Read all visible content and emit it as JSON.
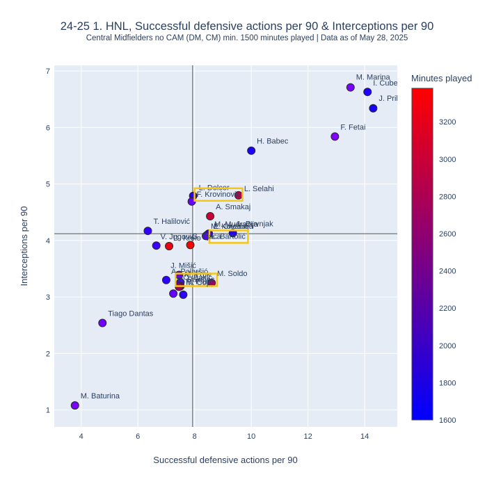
{
  "chart_data": {
    "type": "scatter",
    "title": "24-25 1. HNL, Successful defensive actions per 90 & Interceptions per 90",
    "subtitle": "Central Midfielders no CAM (DM, CM) min. 1500 minutes played | Data as of May 28, 2025",
    "xlabel": "Successful defensive actions per 90",
    "ylabel": "Interceptions per 90",
    "xlim": [
      3.05,
      15.15
    ],
    "ylim": [
      0.7,
      7.1
    ],
    "xticks": [
      4,
      6,
      8,
      10,
      12,
      14
    ],
    "yticks": [
      1,
      2,
      3,
      4,
      5,
      6,
      7
    ],
    "grid": true,
    "reference_lines": {
      "x": 7.93,
      "y": 4.12
    },
    "colorbar": {
      "title": "Minutes played",
      "min": 1600,
      "max": 3380,
      "ticks": [
        1600,
        1800,
        2000,
        2200,
        2400,
        2600,
        2800,
        3000,
        3200
      ],
      "low_color": "#0000ff",
      "high_color": "#ff0000"
    },
    "highlight_color": "#f5c518",
    "points": [
      {
        "name": "M. Marina",
        "x": 13.5,
        "y": 6.71,
        "minutes": 2450
      },
      {
        "name": "I. Čubelić",
        "x": 14.1,
        "y": 6.63,
        "minutes": 1820
      },
      {
        "name": "J. Pribanović",
        "x": 14.3,
        "y": 6.34,
        "minutes": 1740
      },
      {
        "name": "F. Fetai",
        "x": 12.95,
        "y": 5.84,
        "minutes": 2480
      },
      {
        "name": "H. Babec",
        "x": 10.0,
        "y": 5.59,
        "minutes": 1780
      },
      {
        "name": "L. Dolcer",
        "x": 7.95,
        "y": 4.79,
        "minutes": 1900
      },
      {
        "name": "L. Selahi",
        "x": 9.55,
        "y": 4.8,
        "minutes": 2900
      },
      {
        "name": "F. Krovinović",
        "x": 7.9,
        "y": 4.69,
        "minutes": 2300,
        "highlight": true
      },
      {
        "name": "A. Smakaj",
        "x": 8.55,
        "y": 4.43,
        "minutes": 3000
      },
      {
        "name": "T. Halilović",
        "x": 6.35,
        "y": 4.17,
        "minutes": 1950
      },
      {
        "name": "M. Mudražija",
        "x": 8.5,
        "y": 4.12,
        "minutes": 2050
      },
      {
        "name": "M. Kovačić",
        "x": 8.45,
        "y": 4.1,
        "minutes": 2150
      },
      {
        "name": "L. Duvnjak",
        "x": 9.35,
        "y": 4.13,
        "minutes": 1850
      },
      {
        "name": "E. Ćirebulja",
        "x": 8.5,
        "y": 4.12,
        "minutes": 1950
      },
      {
        "name": "Ł. Bartolić",
        "x": 8.4,
        "y": 4.08,
        "minutes": 2250,
        "highlight": true
      },
      {
        "name": "V. Jugović",
        "x": 6.65,
        "y": 3.91,
        "minutes": 2000
      },
      {
        "name": "D. Krolo",
        "x": 7.1,
        "y": 3.9,
        "minutes": 3250
      },
      {
        "name": "G. Pjaca",
        "x": 7.85,
        "y": 3.92,
        "minutes": 3380
      },
      {
        "name": "J. Mišić",
        "x": 7.45,
        "y": 3.39,
        "minutes": 2350
      },
      {
        "name": "A. Palaršić",
        "x": 7.0,
        "y": 3.3,
        "minutes": 1900
      },
      {
        "name": "M. Fruk",
        "x": 7.5,
        "y": 3.26,
        "minutes": 2050
      },
      {
        "name": "M. Soldo",
        "x": 8.6,
        "y": 3.25,
        "minutes": 2700
      },
      {
        "name": "O. Bakić",
        "x": 7.5,
        "y": 3.19,
        "minutes": 2600
      },
      {
        "name": "N. Pukštas",
        "x": 7.45,
        "y": 3.18,
        "minutes": 2750,
        "highlight": true
      },
      {
        "name": "R. Fruk",
        "x": 7.25,
        "y": 3.06,
        "minutes": 2300
      },
      {
        "name": "M. Čop",
        "x": 7.6,
        "y": 3.04,
        "minutes": 1900
      },
      {
        "name": "Tiago Dantas",
        "x": 4.75,
        "y": 2.54,
        "minutes": 2400
      },
      {
        "name": "M. Baturina",
        "x": 3.78,
        "y": 1.08,
        "minutes": 2450
      }
    ]
  }
}
